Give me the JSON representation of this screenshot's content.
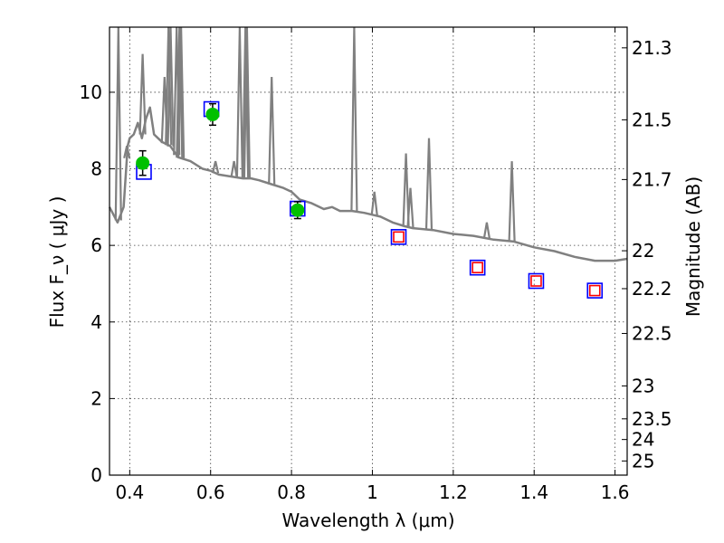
{
  "chart_data": {
    "type": "scatter",
    "xlabel": "Wavelength  λ (μm)",
    "ylabel": "Flux  F_ν  ( μJy )",
    "ylabel_right": "Magnitude (AB)",
    "xlim": [
      0.35,
      1.63
    ],
    "ylim": [
      0,
      11.7
    ],
    "grid": true,
    "x_ticks": [
      0.4,
      0.6,
      0.8,
      1.0,
      1.2,
      1.4,
      1.6
    ],
    "x_tick_labels": [
      "0.4",
      "0.6",
      "0.8",
      "1",
      "1.2",
      "1.4",
      "1.6"
    ],
    "y_ticks": [
      0,
      2,
      4,
      6,
      8,
      10
    ],
    "y_tick_labels": [
      "0",
      "2",
      "4",
      "6",
      "8",
      "10"
    ],
    "right_ticks": [
      {
        "label": "21.3",
        "flux": 11.16
      },
      {
        "label": "21.5",
        "flux": 9.28
      },
      {
        "label": "21.7",
        "flux": 7.72
      },
      {
        "label": "22",
        "flux": 5.86
      },
      {
        "label": "22.2",
        "flux": 4.87
      },
      {
        "label": "22.5",
        "flux": 3.7
      },
      {
        "label": "23",
        "flux": 2.33
      },
      {
        "label": "23.5",
        "flux": 1.47
      },
      {
        "label": "24",
        "flux": 0.93
      },
      {
        "label": "25",
        "flux": 0.37
      }
    ],
    "series": [
      {
        "name": "model spectrum",
        "kind": "line",
        "color": "#808080",
        "x": [
          0.35,
          0.37,
          0.385,
          0.395,
          0.4,
          0.41,
          0.42,
          0.43,
          0.44,
          0.45,
          0.46,
          0.47,
          0.48,
          0.5,
          0.52,
          0.55,
          0.58,
          0.6,
          0.62,
          0.65,
          0.68,
          0.7,
          0.72,
          0.75,
          0.78,
          0.8,
          0.82,
          0.85,
          0.88,
          0.9,
          0.92,
          0.95,
          0.98,
          1.0,
          1.02,
          1.05,
          1.08,
          1.1,
          1.15,
          1.2,
          1.25,
          1.3,
          1.35,
          1.4,
          1.45,
          1.5,
          1.55,
          1.6,
          1.63
        ],
        "y": [
          7.0,
          6.6,
          7.0,
          8.6,
          8.8,
          8.9,
          9.2,
          8.8,
          9.3,
          9.6,
          8.9,
          8.8,
          8.7,
          8.6,
          8.3,
          8.2,
          8.0,
          7.95,
          7.85,
          7.8,
          7.75,
          7.75,
          7.7,
          7.6,
          7.5,
          7.4,
          7.2,
          7.1,
          6.95,
          7.0,
          6.9,
          6.9,
          6.85,
          6.8,
          6.75,
          6.6,
          6.5,
          6.45,
          6.4,
          6.3,
          6.25,
          6.15,
          6.1,
          5.95,
          5.85,
          5.7,
          5.6,
          5.6,
          5.65
        ]
      },
      {
        "name": "emission lines",
        "kind": "spikes",
        "color": "#808080",
        "x": [
          0.372,
          0.393,
          0.432,
          0.486,
          0.496,
          0.501,
          0.516,
          0.523,
          0.527,
          0.612,
          0.658,
          0.672,
          0.686,
          0.69,
          0.751,
          0.955,
          1.005,
          1.083,
          1.094,
          1.14,
          1.283,
          1.345
        ],
        "peak": [
          11.7,
          8.6,
          11.0,
          10.4,
          11.7,
          11.7,
          11.7,
          11.7,
          11.7,
          8.2,
          8.2,
          11.7,
          11.7,
          11.7,
          10.4,
          11.7,
          7.4,
          8.4,
          7.5,
          8.8,
          6.6,
          8.2
        ]
      },
      {
        "name": "observed photometry",
        "kind": "points_errorbars",
        "marker": "circle",
        "color": "#00c000",
        "x": [
          0.432,
          0.605,
          0.815
        ],
        "values": [
          8.15,
          9.42,
          6.92
        ],
        "errors": [
          0.32,
          0.28,
          0.22
        ]
      },
      {
        "name": "model photometry (blue squares)",
        "kind": "points",
        "marker": "square",
        "color": "#0000ff",
        "x": [
          0.435,
          0.602,
          0.815,
          1.065,
          1.26,
          1.405,
          1.55
        ],
        "values": [
          7.92,
          9.56,
          6.96,
          6.22,
          5.42,
          5.07,
          4.82
        ]
      },
      {
        "name": "predicted photometry (red squares)",
        "kind": "points",
        "marker": "square",
        "color": "#ff0000",
        "x": [
          1.065,
          1.26,
          1.405,
          1.55
        ],
        "values": [
          6.22,
          5.42,
          5.07,
          4.82
        ]
      }
    ]
  }
}
